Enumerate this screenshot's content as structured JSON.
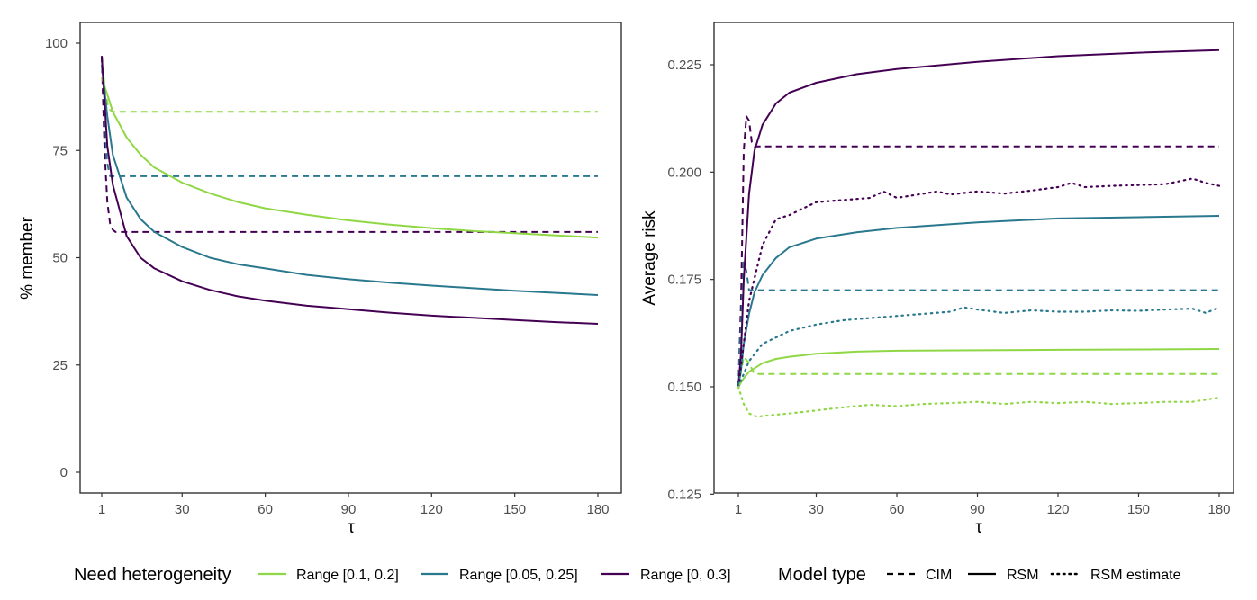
{
  "colors": {
    "light_green": "#8fd744",
    "teal": "#2a788e",
    "purple": "#440154"
  },
  "legend": {
    "heterogeneity_title": "Need heterogeneity",
    "heterogeneity_items": [
      {
        "label": "Range [0.1, 0.2]",
        "color": "#8fd744"
      },
      {
        "label": "Range [0.05, 0.25]",
        "color": "#2a788e"
      },
      {
        "label": "Range [0, 0.3]",
        "color": "#440154"
      }
    ],
    "model_title": "Model type",
    "model_items": [
      {
        "label": "CIM",
        "dash": "dashed"
      },
      {
        "label": "RSM",
        "dash": "solid"
      },
      {
        "label": "RSM estimate",
        "dash": "dotted"
      }
    ],
    "placement": "bottom"
  },
  "chart_data": [
    {
      "type": "line",
      "xlabel": "τ",
      "ylabel": "% member",
      "xlim": [
        1,
        180
      ],
      "ylim": [
        0,
        100
      ],
      "x_ticks": [
        1,
        30,
        60,
        90,
        120,
        150,
        180
      ],
      "y_ticks": [
        0,
        25,
        50,
        75,
        100
      ],
      "y_tick_labels": [
        "0",
        "25",
        "50",
        "75",
        "100"
      ],
      "grid": false,
      "series": [
        {
          "name": "Range [0.1, 0.2]",
          "model": "CIM",
          "color": "#8fd744",
          "dash": "dashed",
          "x": [
            1,
            2,
            3,
            4,
            5,
            180
          ],
          "y": [
            97,
            90,
            86,
            84.5,
            84,
            84
          ]
        },
        {
          "name": "Range [0.05, 0.25]",
          "model": "CIM",
          "color": "#2a788e",
          "dash": "dashed",
          "x": [
            1,
            2,
            3,
            4,
            180
          ],
          "y": [
            97,
            80,
            72,
            69,
            69
          ]
        },
        {
          "name": "Range [0, 0.3]",
          "model": "CIM",
          "color": "#440154",
          "dash": "dashed",
          "x": [
            1,
            2,
            3,
            4,
            5,
            6,
            180
          ],
          "y": [
            97,
            75,
            63,
            58,
            56.5,
            56,
            56
          ]
        },
        {
          "name": "Range [0.1, 0.2]",
          "model": "RSM",
          "color": "#8fd744",
          "dash": "solid",
          "x": [
            1,
            3,
            5,
            10,
            15,
            20,
            30,
            40,
            50,
            60,
            75,
            90,
            105,
            120,
            135,
            150,
            165,
            180
          ],
          "y": [
            92,
            88,
            84,
            78,
            74,
            71,
            67.5,
            65,
            63,
            61.5,
            60,
            58.7,
            57.7,
            56.9,
            56.2,
            55.7,
            55.2,
            54.7
          ]
        },
        {
          "name": "Range [0.05, 0.25]",
          "model": "RSM",
          "color": "#2a788e",
          "dash": "solid",
          "x": [
            1,
            3,
            5,
            10,
            15,
            20,
            30,
            40,
            50,
            60,
            75,
            90,
            105,
            120,
            135,
            150,
            165,
            180
          ],
          "y": [
            95,
            83,
            74,
            64,
            59,
            56,
            52.5,
            50,
            48.5,
            47.5,
            46,
            45,
            44.2,
            43.5,
            42.9,
            42.3,
            41.8,
            41.3
          ]
        },
        {
          "name": "Range [0, 0.3]",
          "model": "RSM",
          "color": "#440154",
          "dash": "solid",
          "x": [
            1,
            3,
            5,
            10,
            15,
            20,
            30,
            40,
            50,
            60,
            75,
            90,
            105,
            120,
            135,
            150,
            165,
            180
          ],
          "y": [
            97,
            76,
            67,
            55,
            50,
            47.5,
            44.5,
            42.5,
            41,
            40,
            38.8,
            38,
            37.2,
            36.5,
            36,
            35.5,
            35,
            34.6
          ]
        }
      ]
    },
    {
      "type": "line",
      "xlabel": "τ",
      "ylabel": "Average risk",
      "xlim": [
        1,
        180
      ],
      "ylim": [
        0.125,
        0.235
      ],
      "x_ticks": [
        1,
        30,
        60,
        90,
        120,
        150,
        180
      ],
      "y_ticks": [
        0.125,
        0.15,
        0.175,
        0.2,
        0.225
      ],
      "y_tick_labels": [
        "0.125",
        "0.150",
        "0.175",
        "0.200",
        "0.225"
      ],
      "grid": false,
      "series": [
        {
          "name": "Range [0, 0.3]",
          "model": "CIM",
          "color": "#440154",
          "dash": "dashed",
          "x": [
            1,
            2,
            3,
            4,
            5,
            6,
            7,
            180
          ],
          "y": [
            0.15,
            0.17,
            0.205,
            0.213,
            0.212,
            0.207,
            0.206,
            0.206
          ]
        },
        {
          "name": "Range [0.05, 0.25]",
          "model": "CIM",
          "color": "#2a788e",
          "dash": "dashed",
          "x": [
            1,
            2,
            3,
            4,
            5,
            180
          ],
          "y": [
            0.15,
            0.165,
            0.179,
            0.177,
            0.1725,
            0.1725
          ]
        },
        {
          "name": "Range [0.1, 0.2]",
          "model": "CIM",
          "color": "#8fd744",
          "dash": "dashed",
          "x": [
            1,
            3,
            5,
            7,
            180
          ],
          "y": [
            0.15,
            0.157,
            0.1555,
            0.153,
            0.153
          ]
        },
        {
          "name": "Range [0, 0.3]",
          "model": "RSM",
          "color": "#440154",
          "dash": "solid",
          "x": [
            1,
            2,
            3,
            5,
            7,
            10,
            15,
            20,
            30,
            45,
            60,
            90,
            120,
            150,
            180
          ],
          "y": [
            0.15,
            0.158,
            0.175,
            0.195,
            0.205,
            0.211,
            0.216,
            0.2185,
            0.2208,
            0.2228,
            0.224,
            0.2257,
            0.227,
            0.2278,
            0.2284
          ]
        },
        {
          "name": "Range [0.05, 0.25]",
          "model": "RSM",
          "color": "#2a788e",
          "dash": "solid",
          "x": [
            1,
            2,
            3,
            5,
            7,
            10,
            15,
            20,
            30,
            45,
            60,
            90,
            120,
            150,
            180
          ],
          "y": [
            0.15,
            0.154,
            0.16,
            0.167,
            0.172,
            0.176,
            0.18,
            0.1825,
            0.1845,
            0.186,
            0.187,
            0.1883,
            0.1892,
            0.1895,
            0.1898
          ]
        },
        {
          "name": "Range [0.1, 0.2]",
          "model": "RSM",
          "color": "#8fd744",
          "dash": "solid",
          "x": [
            1,
            3,
            5,
            10,
            15,
            20,
            30,
            45,
            60,
            90,
            120,
            150,
            180
          ],
          "y": [
            0.15,
            0.152,
            0.1535,
            0.1555,
            0.1565,
            0.157,
            0.1577,
            0.1582,
            0.1584,
            0.1585,
            0.1586,
            0.1587,
            0.1588
          ]
        },
        {
          "name": "Range [0, 0.3]",
          "model": "RSM estimate",
          "color": "#440154",
          "dash": "dotted",
          "x": [
            1,
            5,
            10,
            15,
            20,
            30,
            40,
            50,
            55,
            60,
            70,
            75,
            80,
            90,
            100,
            110,
            120,
            125,
            130,
            140,
            150,
            160,
            170,
            175,
            180
          ],
          "y": [
            0.15,
            0.17,
            0.183,
            0.189,
            0.19,
            0.193,
            0.1935,
            0.194,
            0.1955,
            0.194,
            0.195,
            0.1955,
            0.1948,
            0.1955,
            0.195,
            0.1957,
            0.1965,
            0.1975,
            0.1965,
            0.1968,
            0.197,
            0.1972,
            0.1985,
            0.1975,
            0.1968
          ]
        },
        {
          "name": "Range [0.05, 0.25]",
          "model": "RSM estimate",
          "color": "#2a788e",
          "dash": "dotted",
          "x": [
            1,
            5,
            10,
            15,
            20,
            30,
            40,
            50,
            60,
            70,
            80,
            85,
            90,
            100,
            110,
            120,
            130,
            140,
            150,
            160,
            170,
            175,
            180
          ],
          "y": [
            0.15,
            0.156,
            0.16,
            0.1615,
            0.163,
            0.1645,
            0.1655,
            0.166,
            0.1665,
            0.167,
            0.1675,
            0.1685,
            0.168,
            0.1672,
            0.1678,
            0.1675,
            0.1675,
            0.1678,
            0.1677,
            0.168,
            0.1682,
            0.1672,
            0.1685
          ]
        },
        {
          "name": "Range [0.1, 0.2]",
          "model": "RSM estimate",
          "color": "#8fd744",
          "dash": "dotted",
          "x": [
            1,
            3,
            5,
            8,
            10,
            15,
            20,
            30,
            40,
            50,
            60,
            70,
            80,
            90,
            100,
            110,
            120,
            130,
            140,
            150,
            160,
            170,
            180
          ],
          "y": [
            0.15,
            0.146,
            0.1438,
            0.143,
            0.1432,
            0.1435,
            0.1438,
            0.1445,
            0.1452,
            0.1458,
            0.1455,
            0.146,
            0.1462,
            0.1465,
            0.146,
            0.1465,
            0.1462,
            0.1465,
            0.146,
            0.1462,
            0.1465,
            0.1465,
            0.1475
          ]
        }
      ]
    }
  ]
}
